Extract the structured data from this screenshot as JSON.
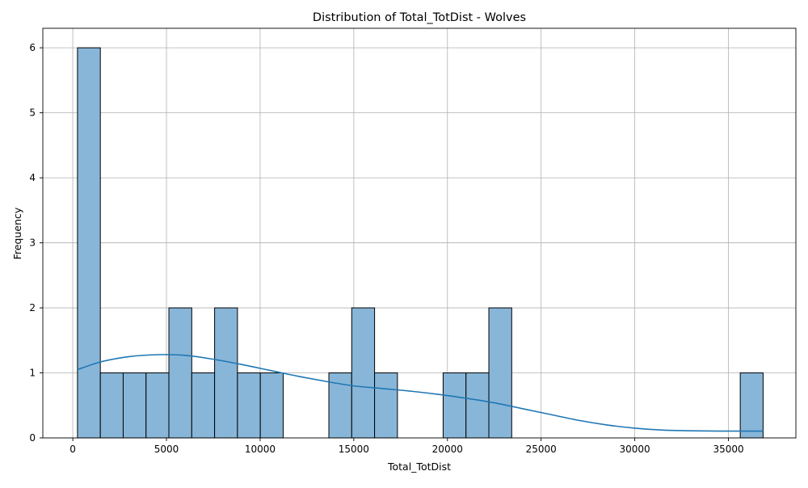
{
  "chart_data": {
    "type": "bar",
    "subtype": "histogram",
    "title": "Distribution of Total_TotDist - Wolves",
    "xlabel": "Total_TotDist",
    "ylabel": "Frequency",
    "xlim": [
      -1600,
      38600
    ],
    "ylim": [
      0,
      6.3
    ],
    "xticks": [
      0,
      5000,
      10000,
      15000,
      20000,
      25000,
      30000,
      35000
    ],
    "yticks": [
      0,
      1,
      2,
      3,
      4,
      5,
      6
    ],
    "grid": true,
    "bins": [
      {
        "start": 250,
        "end": 1470,
        "count": 6
      },
      {
        "start": 1470,
        "end": 2690,
        "count": 1
      },
      {
        "start": 2690,
        "end": 3910,
        "count": 1
      },
      {
        "start": 3910,
        "end": 5130,
        "count": 1
      },
      {
        "start": 5130,
        "end": 6350,
        "count": 2
      },
      {
        "start": 6350,
        "end": 7570,
        "count": 1
      },
      {
        "start": 7570,
        "end": 8790,
        "count": 2
      },
      {
        "start": 8790,
        "end": 10010,
        "count": 1
      },
      {
        "start": 10010,
        "end": 11230,
        "count": 1
      },
      {
        "start": 11230,
        "end": 12450,
        "count": 0
      },
      {
        "start": 12450,
        "end": 13670,
        "count": 0
      },
      {
        "start": 13670,
        "end": 14890,
        "count": 1
      },
      {
        "start": 14890,
        "end": 16110,
        "count": 2
      },
      {
        "start": 16110,
        "end": 17330,
        "count": 1
      },
      {
        "start": 17330,
        "end": 18550,
        "count": 0
      },
      {
        "start": 18550,
        "end": 19770,
        "count": 0
      },
      {
        "start": 19770,
        "end": 20990,
        "count": 1
      },
      {
        "start": 20990,
        "end": 22210,
        "count": 1
      },
      {
        "start": 22210,
        "end": 23430,
        "count": 2
      },
      {
        "start": 23430,
        "end": 24650,
        "count": 0
      },
      {
        "start": 24650,
        "end": 25870,
        "count": 0
      },
      {
        "start": 25870,
        "end": 27090,
        "count": 0
      },
      {
        "start": 27090,
        "end": 28310,
        "count": 0
      },
      {
        "start": 28310,
        "end": 29530,
        "count": 0
      },
      {
        "start": 29530,
        "end": 30750,
        "count": 0
      },
      {
        "start": 30750,
        "end": 31970,
        "count": 0
      },
      {
        "start": 31970,
        "end": 33190,
        "count": 0
      },
      {
        "start": 33190,
        "end": 34410,
        "count": 0
      },
      {
        "start": 34410,
        "end": 35630,
        "count": 0
      },
      {
        "start": 35630,
        "end": 36850,
        "count": 1
      }
    ],
    "kde": {
      "x": [
        250,
        1500,
        3000,
        4500,
        6000,
        7500,
        9000,
        10500,
        12000,
        13500,
        15000,
        16500,
        18000,
        19500,
        21000,
        22500,
        24000,
        25500,
        27000,
        28500,
        30000,
        31500,
        33000,
        34500,
        36000,
        36850
      ],
      "y": [
        1.05,
        1.17,
        1.25,
        1.28,
        1.27,
        1.21,
        1.13,
        1.04,
        0.95,
        0.87,
        0.8,
        0.76,
        0.72,
        0.67,
        0.61,
        0.54,
        0.45,
        0.36,
        0.27,
        0.2,
        0.15,
        0.12,
        0.11,
        0.105,
        0.105,
        0.105
      ]
    },
    "colors": {
      "bar_fill": "#88b6d8",
      "bar_edge": "#000000",
      "kde_line": "#1f77b4",
      "grid": "#b0b0b0",
      "axis": "#000000"
    }
  }
}
